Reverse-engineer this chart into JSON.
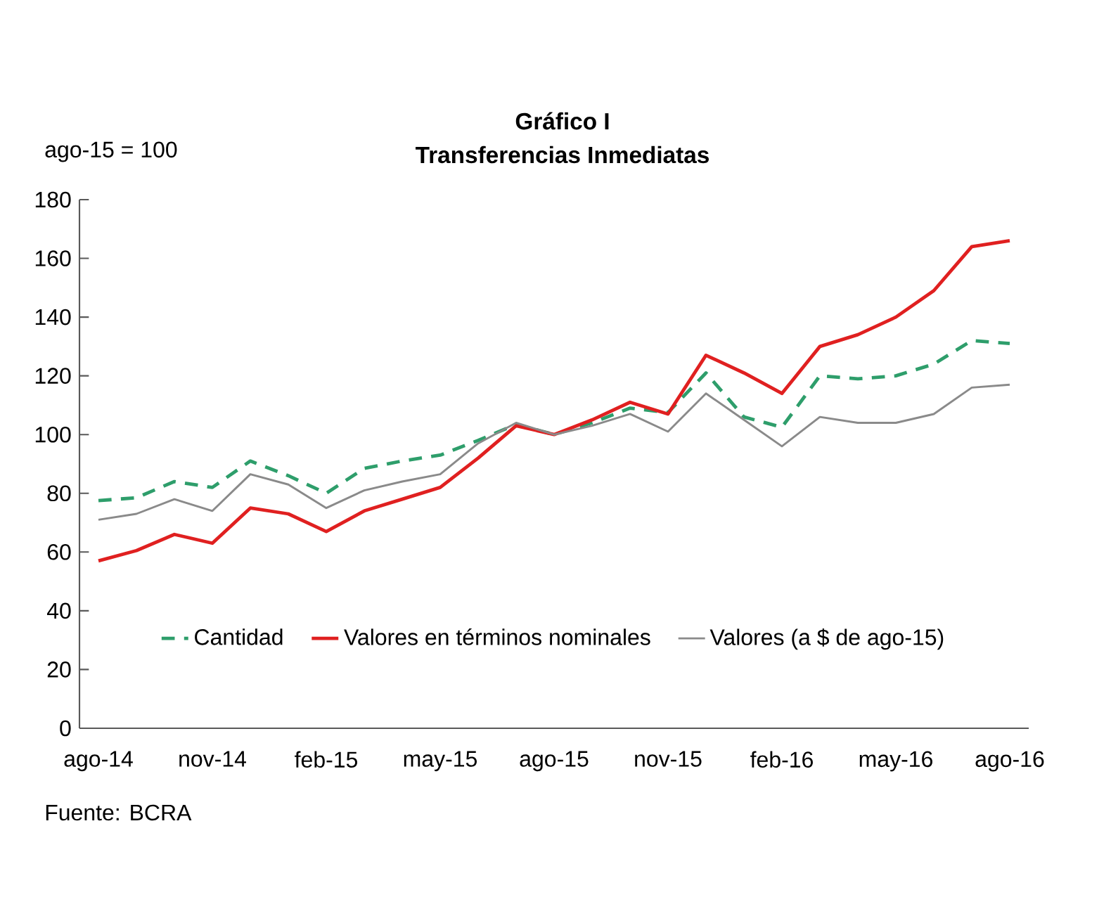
{
  "chart_data": {
    "type": "line",
    "title": "Gráfico I",
    "subtitle": "Transferencias Inmediatas",
    "ylabel": "ago-15 = 100",
    "categories": [
      "ago-14",
      null,
      null,
      "nov-14",
      null,
      null,
      "feb-15",
      null,
      null,
      "may-15",
      null,
      null,
      "ago-15",
      null,
      null,
      "nov-15",
      null,
      null,
      "feb-16",
      null,
      null,
      "may-16",
      null,
      null,
      "ago-16"
    ],
    "series": [
      {
        "name": "Cantidad",
        "color": "#2e9e6b",
        "line_style": "dashed",
        "values": [
          77.5,
          78.5,
          84,
          82,
          91,
          86,
          80,
          88.5,
          91,
          93,
          98,
          103.5,
          100,
          104,
          109,
          107.5,
          121,
          106,
          102.5,
          120,
          119,
          120,
          124,
          132,
          131
        ]
      },
      {
        "name": "Valores en términos nominales",
        "color": "#e02020",
        "line_style": "solid",
        "values": [
          57,
          60.5,
          66,
          63,
          75,
          73,
          67,
          74,
          78,
          82,
          92,
          103,
          100,
          105,
          111,
          107,
          127,
          121,
          114,
          130,
          134,
          140,
          149,
          164,
          166
        ]
      },
      {
        "name": "Valores (a $ de ago-15)",
        "color": "#8a8a8a",
        "line_style": "solid",
        "values": [
          71,
          73,
          78,
          74,
          86.5,
          83,
          75,
          81,
          84,
          86.5,
          97,
          104,
          100,
          103,
          107,
          101,
          114,
          105,
          96,
          106,
          104,
          104,
          107,
          116,
          117
        ]
      }
    ],
    "ylim": [
      0,
      180
    ],
    "yticks": [
      0,
      20,
      40,
      60,
      80,
      100,
      120,
      140,
      160,
      180
    ],
    "grid": false,
    "legend": "bottom",
    "marker": "none",
    "annotations": [
      "Fuente: BCRA"
    ]
  }
}
